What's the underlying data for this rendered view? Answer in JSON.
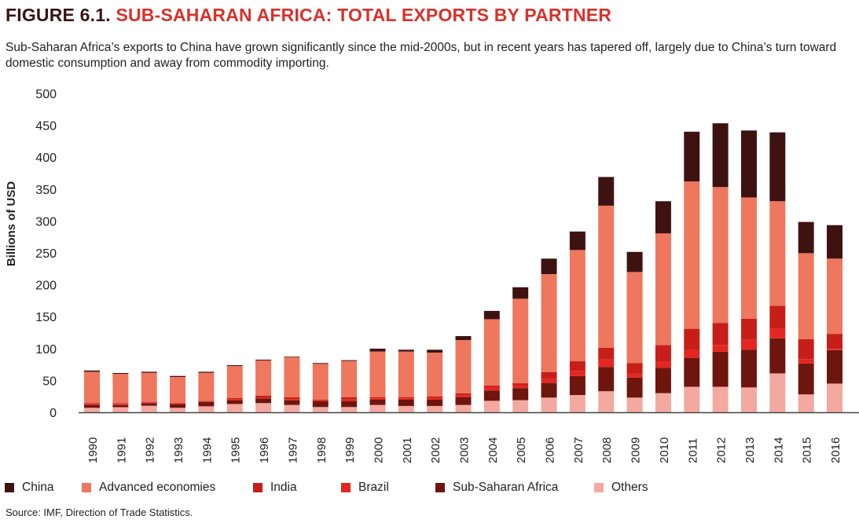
{
  "title_number": "FIGURE 6.1.",
  "title_text": "SUB-SAHARAN AFRICA: TOTAL EXPORTS BY PARTNER",
  "subtitle": "Sub-Saharan Africa’s exports to China have grown significantly since the mid-2000s, but in recent years has tapered off, largely due to China’s turn toward domestic consumption and away from commodity importing.",
  "source": "Source: IMF, Direction of Trade Statistics.",
  "chart_data": {
    "type": "bar",
    "stacked": true,
    "ylabel": "Billions of USD",
    "ylim": [
      0,
      500
    ],
    "yticks": [
      0,
      50,
      100,
      150,
      200,
      250,
      300,
      350,
      400,
      450,
      500
    ],
    "grid": false,
    "legend_position": "bottom",
    "categories": [
      "1990",
      "1991",
      "1992",
      "1993",
      "1994",
      "1995",
      "1996",
      "1997",
      "1998",
      "1999",
      "2000",
      "2001",
      "2002",
      "2003",
      "2004",
      "2005",
      "2006",
      "2007",
      "2008",
      "2009",
      "2010",
      "2011",
      "2012",
      "2013",
      "2014",
      "2015",
      "2016"
    ],
    "series": [
      {
        "name": "Others",
        "color": "#f3a9a0",
        "values": [
          7,
          8,
          10.3,
          7,
          9.4,
          13,
          14.4,
          11.5,
          8.2,
          8.2,
          11.5,
          9.9,
          9.9,
          11.5,
          18,
          19,
          23,
          27,
          33,
          23,
          30,
          40,
          40,
          39,
          61,
          28,
          45
        ]
      },
      {
        "name": "Sub-Saharan Africa",
        "color": "#6e150d",
        "values": [
          4.5,
          3.3,
          3.7,
          5.7,
          7,
          5.5,
          7.4,
          7,
          9,
          9,
          8.2,
          9.8,
          9.8,
          11.9,
          16,
          19,
          23,
          30,
          38,
          31.5,
          40,
          45,
          55,
          59,
          55,
          48.5,
          52.5
        ]
      },
      {
        "name": "Brazil",
        "color": "#e52620",
        "values": [
          2,
          2,
          1.6,
          1.7,
          0.8,
          2,
          1.6,
          2,
          1.7,
          2.9,
          2.1,
          2.1,
          2.1,
          3.3,
          6,
          4.5,
          6.5,
          8,
          12,
          6.5,
          9.5,
          13,
          10.7,
          15.6,
          15,
          7,
          2
        ]
      },
      {
        "name": "India",
        "color": "#c81e19",
        "values": [
          1,
          1,
          0.8,
          0.4,
          0.5,
          1.7,
          2.5,
          2.9,
          1.2,
          3.3,
          1.6,
          1.6,
          2.8,
          2.9,
          2,
          3,
          10.7,
          15,
          18,
          16,
          26,
          33,
          34.5,
          33.3,
          36,
          31,
          23.5
        ]
      },
      {
        "name": "Advanced economies",
        "color": "#ee775e",
        "values": [
          49,
          46,
          45.6,
          40.6,
          44.3,
          50.5,
          55.4,
          63.2,
          55.8,
          57.1,
          71.8,
          71.8,
          69,
          83.7,
          104,
          132.6,
          153.5,
          174.5,
          223,
          143,
          175,
          231,
          213,
          190,
          164,
          135,
          118
        ]
      },
      {
        "name": "China",
        "color": "#3f1212",
        "values": [
          2,
          1.3,
          1.6,
          1.6,
          1.6,
          1.2,
          1.2,
          0.8,
          1.3,
          1.2,
          4.6,
          2.9,
          4.5,
          6.2,
          13,
          18,
          24.3,
          29,
          45,
          31.5,
          50.5,
          78,
          100,
          105,
          108,
          49,
          52.5
        ]
      }
    ],
    "legend_order": [
      "China",
      "Advanced economies",
      "India",
      "Brazil",
      "Sub-Saharan Africa",
      "Others"
    ]
  }
}
